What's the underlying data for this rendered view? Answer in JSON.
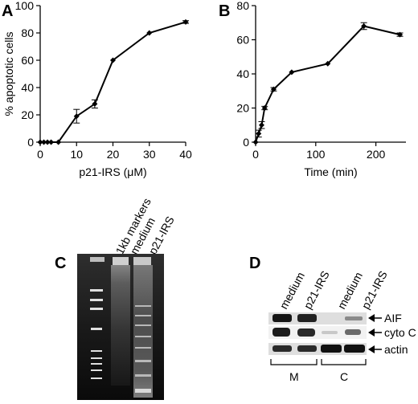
{
  "panels": {
    "A": {
      "letter": "A"
    },
    "B": {
      "letter": "B"
    },
    "C": {
      "letter": "C",
      "lanes": [
        "1kb markers",
        "medium",
        "p21-IRS"
      ]
    },
    "D": {
      "letter": "D",
      "lanes": [
        "medium",
        "p21-IRS",
        "medium",
        "p21-IRS"
      ],
      "rows": [
        "AIF",
        "cyto C",
        "actin"
      ],
      "groups": [
        "M",
        "C"
      ]
    }
  },
  "chart_data": [
    {
      "type": "line",
      "panel": "A",
      "title": "",
      "xlabel": "p21-IRS (μM)",
      "ylabel": "% apoptotic cells",
      "xlim": [
        0,
        40
      ],
      "ylim": [
        0,
        100
      ],
      "xticks": [
        0,
        10,
        20,
        30,
        40
      ],
      "yticks": [
        0,
        20,
        40,
        60,
        80,
        100
      ],
      "x": [
        0,
        1,
        2,
        3,
        5,
        10,
        15,
        20,
        30,
        40
      ],
      "y": [
        0,
        0,
        0,
        0,
        0,
        19,
        28,
        60,
        80,
        88
      ],
      "err": [
        0,
        0,
        0,
        0,
        0,
        5,
        3,
        0,
        0,
        1
      ],
      "grid": false
    },
    {
      "type": "line",
      "panel": "B",
      "title": "",
      "xlabel": "Time (min)",
      "ylabel": "",
      "xlim": [
        0,
        250
      ],
      "ylim": [
        0,
        80
      ],
      "xticks": [
        0,
        100,
        200
      ],
      "yticks": [
        0,
        20,
        40,
        60,
        80
      ],
      "x": [
        0,
        5,
        10,
        15,
        30,
        60,
        120,
        180,
        240
      ],
      "y": [
        0,
        5,
        10,
        20,
        31,
        41,
        46,
        68,
        63
      ],
      "err": [
        0,
        2,
        2,
        1,
        1,
        0,
        0,
        2,
        1
      ],
      "grid": false
    }
  ]
}
